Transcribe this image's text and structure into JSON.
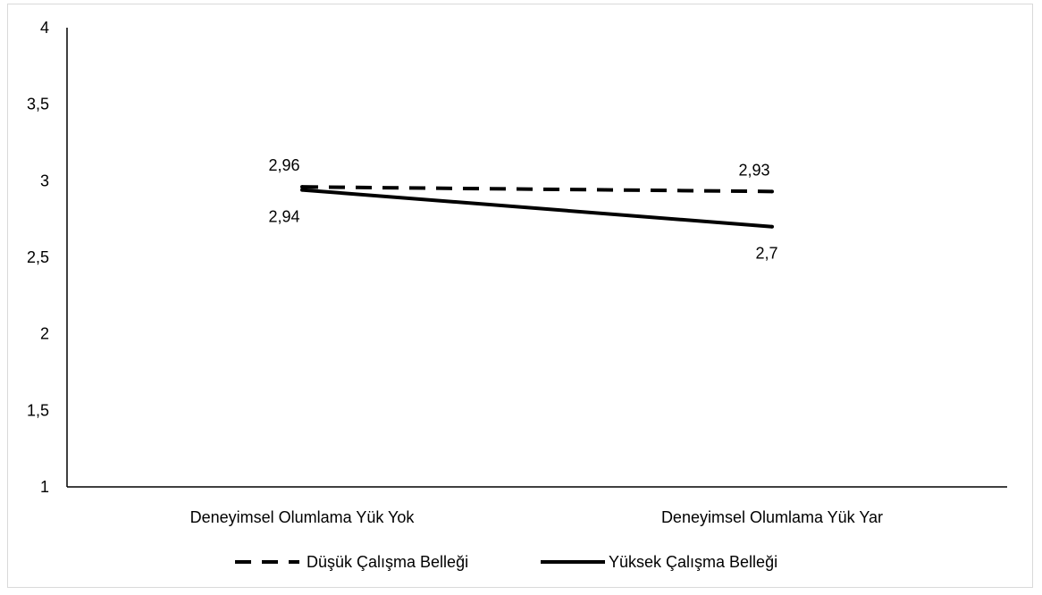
{
  "chart_data": {
    "type": "line",
    "title": "",
    "xlabel": "",
    "ylabel": "",
    "categories": [
      "Deneyimsel Olumlama Yük Yok",
      "Deneyimsel Olumlama Yük Yar"
    ],
    "ylim": [
      1,
      4
    ],
    "yticks": [
      "1",
      "1,5",
      "2",
      "2,5",
      "3",
      "3,5",
      "4"
    ],
    "ytick_values": [
      1,
      1.5,
      2,
      2.5,
      3,
      3.5,
      4
    ],
    "grid": false,
    "legend_placement": "bottom",
    "series": [
      {
        "name": "Düşük Çalışma Belleği",
        "values": [
          2.96,
          2.93
        ],
        "labels": [
          "2,96",
          "2,93"
        ],
        "style": "dashed",
        "color": "#000000"
      },
      {
        "name": "Yüksek Çalışma Belleği",
        "values": [
          2.94,
          2.7
        ],
        "labels": [
          "2,94",
          "2,7"
        ],
        "style": "solid",
        "color": "#000000"
      }
    ]
  }
}
